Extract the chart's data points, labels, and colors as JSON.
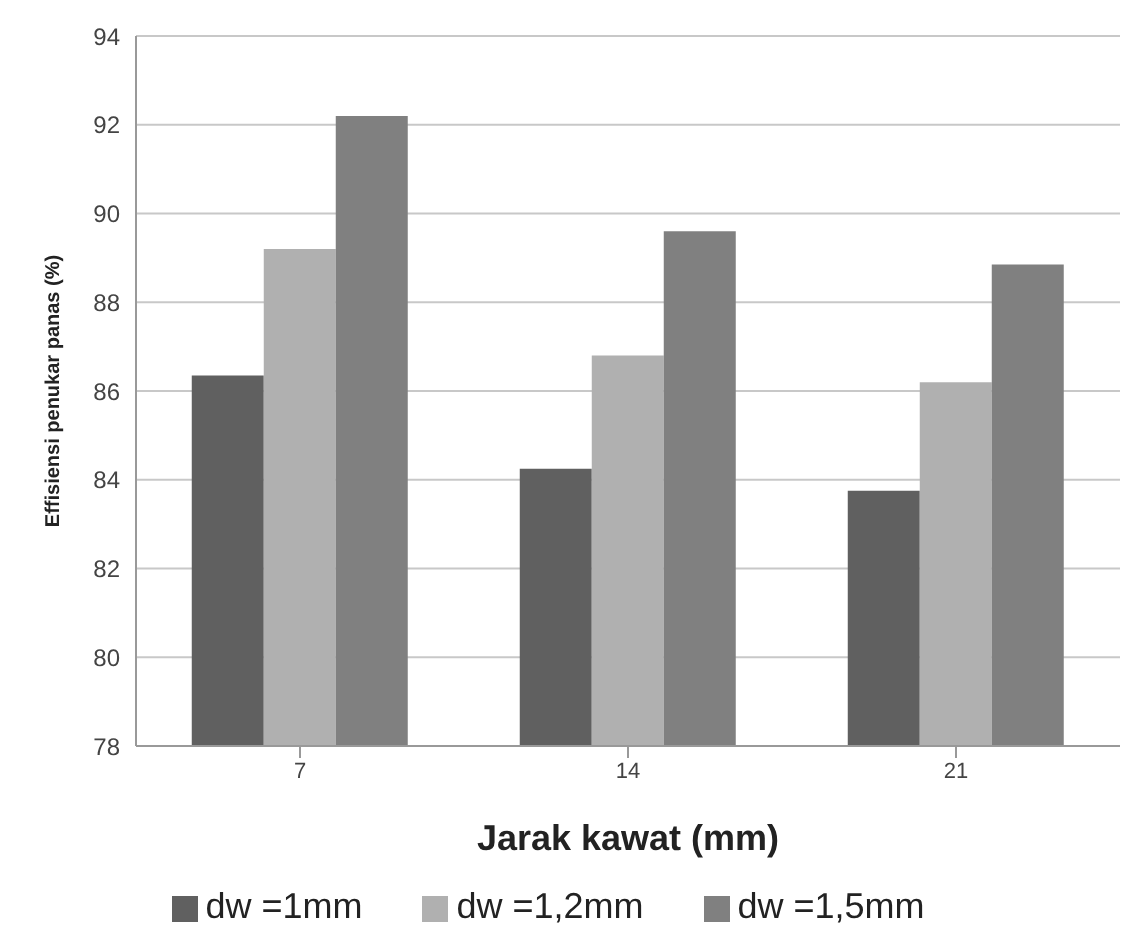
{
  "chart_data": {
    "type": "bar",
    "xlabel": "Jarak kawat (mm)",
    "ylabel": "Effisiensi penukar panas (%)",
    "categories": [
      "7",
      "14",
      "21"
    ],
    "series": [
      {
        "name": "dw =1mm",
        "color": "#606060",
        "values": [
          86.35,
          84.25,
          83.75
        ]
      },
      {
        "name": "dw =1,2mm",
        "color": "#b0b0b0",
        "values": [
          89.2,
          86.8,
          86.2
        ]
      },
      {
        "name": "dw =1,5mm",
        "color": "#808080",
        "values": [
          92.2,
          89.6,
          88.85
        ]
      }
    ],
    "ylim": [
      78,
      94
    ],
    "yticks": [
      78,
      80,
      82,
      84,
      86,
      88,
      90,
      92,
      94
    ],
    "grid": "y",
    "legend": "bottom"
  }
}
